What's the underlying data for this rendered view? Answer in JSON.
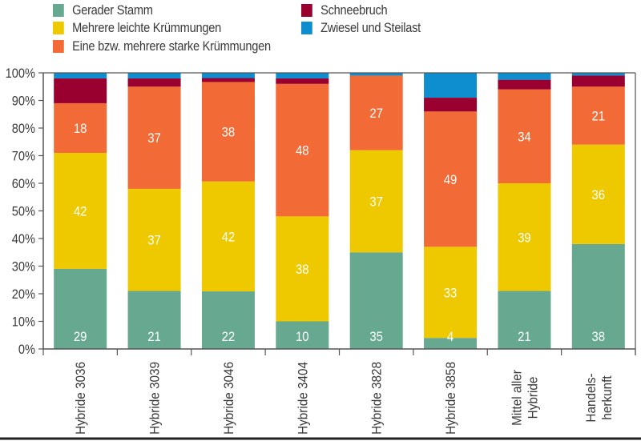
{
  "chart_data": {
    "type": "bar",
    "stacked": true,
    "title": "",
    "xlabel": "",
    "ylabel": "",
    "ylim": [
      0,
      100
    ],
    "yticks": [
      "0%",
      "10%",
      "20%",
      "30%",
      "40%",
      "50%",
      "60%",
      "70%",
      "80%",
      "90%",
      "100%"
    ],
    "grid": false,
    "legend_position": "top",
    "categories": [
      [
        "Hybride 3036"
      ],
      [
        "Hybride 3039"
      ],
      [
        "Hybride 3046"
      ],
      [
        "Hybride 3404"
      ],
      [
        "Hybride 3828"
      ],
      [
        "Hybride 3858"
      ],
      [
        "Mittel aller",
        "Hybride"
      ],
      [
        "Handels-",
        "herkunft"
      ]
    ],
    "series": [
      {
        "name": "Gerader Stamm",
        "color": "#66a890",
        "labeled": true,
        "values": [
          29,
          21,
          22,
          10,
          35,
          4,
          21,
          38
        ]
      },
      {
        "name": "Mehrere leichte Krümmungen",
        "color": "#efc900",
        "labeled": true,
        "values": [
          42,
          37,
          42,
          38,
          37,
          33,
          39,
          36
        ]
      },
      {
        "name": "Eine  bzw. mehrere starke Krümmungen",
        "color": "#f26a36",
        "labeled": true,
        "values": [
          18,
          37,
          38,
          48,
          27,
          49,
          34,
          21
        ]
      },
      {
        "name": "Schneebruch",
        "color": "#990030",
        "labeled": false,
        "values": [
          9,
          3,
          1.5,
          2,
          0,
          5,
          3.5,
          4
        ]
      },
      {
        "name": "Zwiesel und Steilast",
        "color": "#0f8ecf",
        "labeled": false,
        "values": [
          2,
          2,
          2,
          2,
          1,
          9,
          2.5,
          1
        ]
      }
    ]
  },
  "legend": {
    "items": [
      {
        "label": "Gerader Stamm",
        "color": "#66a890"
      },
      {
        "label": "Mehrere leichte Krümmungen",
        "color": "#efc900"
      },
      {
        "label": "Eine  bzw. mehrere starke Krümmungen",
        "color": "#f26a36"
      },
      {
        "label": "Schneebruch",
        "color": "#990030"
      },
      {
        "label": "Zwiesel und Steilast",
        "color": "#0f8ecf"
      }
    ]
  }
}
